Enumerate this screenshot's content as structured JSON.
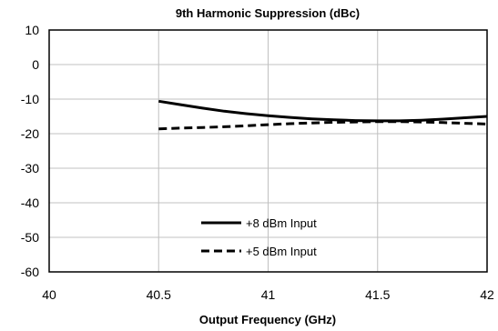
{
  "chart_data": {
    "type": "line",
    "title": "9th Harmonic Suppression (dBc)",
    "xlabel": "Output Frequency (GHz)",
    "ylabel": "",
    "xlim": [
      40,
      42
    ],
    "ylim": [
      -60,
      10
    ],
    "x_ticks": [
      40,
      40.5,
      41,
      41.5,
      42
    ],
    "x_tick_labels": [
      "40",
      "40.5",
      "41",
      "41.5",
      "42"
    ],
    "y_ticks": [
      10,
      0,
      -10,
      -20,
      -30,
      -40,
      -50,
      -60
    ],
    "y_tick_labels": [
      "10",
      "0",
      "-10",
      "-20",
      "-30",
      "-40",
      "-50",
      "-60"
    ],
    "grid": true,
    "legend_position": "bottom-center",
    "series": [
      {
        "name": "+8 dBm Input",
        "style": "solid",
        "color": "#000000",
        "x": [
          40.5,
          40.6,
          40.7,
          40.8,
          40.9,
          41.0,
          41.1,
          41.2,
          41.3,
          41.4,
          41.5,
          41.6,
          41.7,
          41.8,
          41.9,
          42.0
        ],
        "y": [
          -10.6,
          -11.6,
          -12.6,
          -13.5,
          -14.2,
          -14.8,
          -15.3,
          -15.7,
          -16.0,
          -16.2,
          -16.3,
          -16.3,
          -16.1,
          -15.8,
          -15.4,
          -15.0
        ]
      },
      {
        "name": "+5 dBm Input",
        "style": "dashed",
        "color": "#000000",
        "x": [
          40.5,
          40.6,
          40.7,
          40.8,
          40.9,
          41.0,
          41.1,
          41.2,
          41.3,
          41.4,
          41.5,
          41.6,
          41.7,
          41.8,
          41.9,
          42.0
        ],
        "y": [
          -18.6,
          -18.4,
          -18.2,
          -18.0,
          -17.7,
          -17.4,
          -17.1,
          -16.9,
          -16.7,
          -16.6,
          -16.5,
          -16.5,
          -16.6,
          -16.8,
          -17.0,
          -17.2
        ]
      }
    ]
  }
}
